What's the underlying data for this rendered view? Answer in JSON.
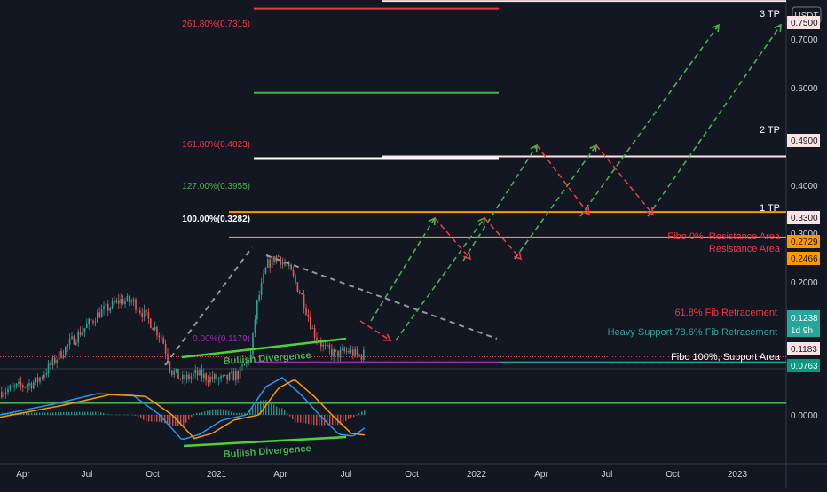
{
  "chart_data": {
    "type": "candlestick",
    "currency": "USDT",
    "x_labels": [
      "Apr",
      "Jul",
      "Oct",
      "2021",
      "Apr",
      "Jul",
      "Oct",
      "2022",
      "Apr",
      "Jul",
      "Oct",
      "2023"
    ],
    "price_axis_ticks": [
      "0.7000",
      "0.6000",
      "0.4000",
      "0.3000",
      "0.2000"
    ],
    "ylim": [
      0.06,
      0.78
    ],
    "macd_zero_label": "0.0000",
    "fib_levels": [
      {
        "label": "261.80%(0.7315)",
        "value": 0.7315,
        "color": "#f23645"
      },
      {
        "label": "161.80%(0.4823)",
        "value": 0.4823,
        "color": "#f23645"
      },
      {
        "label": "127.00%(0.3955)",
        "value": 0.3955,
        "color": "#4caf50"
      },
      {
        "label": "100.00%(0.3282)",
        "value": 0.3282,
        "color": "#ffffff"
      },
      {
        "label": "0.00%(0.1179)",
        "value": 0.1179,
        "color": "#9c27b0"
      }
    ],
    "horizontal_levels": [
      {
        "value": 0.2729,
        "label": "Fibo 0%, Resistance Area",
        "badge": "0.2729",
        "color": "#ff9800",
        "text_color": "#f23645"
      },
      {
        "value": 0.2466,
        "label": "Resistance Area",
        "badge": "0.2466",
        "color": "#ff9800",
        "text_color": "#f23645"
      },
      {
        "value": 0.1238,
        "label": "61.8% Fib Retracement",
        "badge": "0.1238",
        "color": "#f23645",
        "text_color": "#f23645"
      },
      {
        "value": 0.1183,
        "label": "Heavy Support 78.6% Fib Retracement",
        "badge": "0.1183",
        "color": "#26a69a",
        "text_color": "#26a69a"
      },
      {
        "value": 0.0763,
        "label": "Fibo 100%, Support Area",
        "badge": "0.0763",
        "color": "#4caf50",
        "text_color": "#ffffff"
      }
    ],
    "targets": [
      {
        "label": "3 TP",
        "badge": "0.7500",
        "value": 0.75
      },
      {
        "label": "2 TP",
        "badge": "0.4900",
        "value": 0.49
      },
      {
        "label": "1 TP",
        "badge": "0.3300",
        "value": 0.33
      }
    ],
    "current_price": {
      "value": "0.1238",
      "countdown": "1d 9h"
    },
    "annotations": [
      "Bullish Divergence",
      "Bullish Divergence"
    ],
    "colors": {
      "background": "#131722",
      "up": "#26a69a",
      "down": "#ef5350",
      "projection_up": "#4caf50",
      "projection_down": "#f23645",
      "trendline": "#9598a1",
      "macd_line": "#2196f3",
      "signal_line": "#ff9800"
    }
  }
}
